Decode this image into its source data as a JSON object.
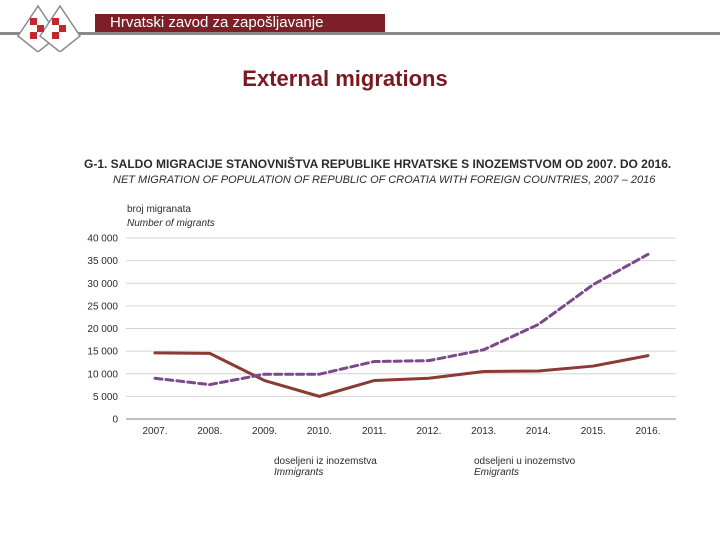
{
  "header": {
    "organization": "Hrvatski zavod za zapošljavanje",
    "accent_color": "#7d1f26"
  },
  "slide": {
    "title": "External migrations"
  },
  "chart_data": {
    "type": "line",
    "title": "G-1.  SALDO MIGRACIJE STANOVNIŠTVA REPUBLIKE HRVATSKE S INOZEMSTVOM OD 2007. DO 2016.",
    "subtitle": "NET MIGRATION OF POPULATION OF REPUBLIC OF CROATIA  WITH FOREIGN COUNTRIES, 2007 – 2016",
    "ylabel": "broj migranata",
    "ylabel_en": "Number of migrants",
    "xlabel": "",
    "categories": [
      "2007.",
      "2008.",
      "2009.",
      "2010.",
      "2011.",
      "2012.",
      "2013.",
      "2014.",
      "2015.",
      "2016."
    ],
    "y_ticks": [
      0,
      5000,
      10000,
      15000,
      20000,
      25000,
      30000,
      35000,
      40000
    ],
    "y_tick_labels": [
      "0",
      "5 000",
      "10 000",
      "15 000",
      "20 000",
      "25 000",
      "30 000",
      "35 000",
      "40 000"
    ],
    "ylim": [
      0,
      40000
    ],
    "grid": true,
    "legend_position": "bottom",
    "series": [
      {
        "name": "doseljeni iz inozemstva",
        "name_en": "Immigrants",
        "style": "solid",
        "color": "#8b3a35",
        "values": [
          14600,
          14500,
          8500,
          5000,
          8500,
          9000,
          10500,
          10600,
          11700,
          14000
        ]
      },
      {
        "name": "odseljeni u inozemstvo",
        "name_en": "Emigrants",
        "style": "dashed",
        "color": "#7a4a8c",
        "values": [
          9000,
          7600,
          9900,
          9900,
          12700,
          12900,
          15300,
          20900,
          29700,
          36400
        ]
      }
    ]
  }
}
